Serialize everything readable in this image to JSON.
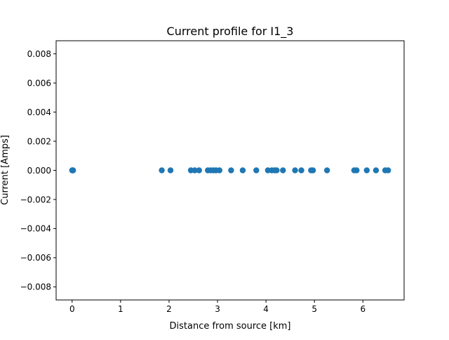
{
  "chart_data": {
    "type": "scatter",
    "title": "Current profile for  I1_3",
    "xlabel": "Distance from source [km]",
    "ylabel": "Current [Amps]",
    "xlim": [
      -0.33,
      6.85
    ],
    "ylim": [
      -0.0089,
      0.0089
    ],
    "xticks": [
      0,
      1,
      2,
      3,
      4,
      5,
      6
    ],
    "xtick_labels": [
      "0",
      "1",
      "2",
      "3",
      "4",
      "5",
      "6"
    ],
    "yticks": [
      0.008,
      0.006,
      0.004,
      0.002,
      0.0,
      -0.002,
      -0.004,
      -0.006,
      -0.008
    ],
    "ytick_labels": [
      "0.008",
      "0.006",
      "0.004",
      "0.002",
      "0.000",
      "−0.002",
      "−0.004",
      "−0.006",
      "−0.008"
    ],
    "grid": false,
    "marker_color": "#1f77b4",
    "series": [
      {
        "x": [
          0.0,
          0.01,
          0.02,
          1.85,
          2.03,
          2.45,
          2.53,
          2.62,
          2.8,
          2.86,
          2.92,
          2.97,
          3.04,
          3.28,
          3.52,
          3.8,
          4.04,
          4.12,
          4.18,
          4.22,
          4.35,
          4.6,
          4.73,
          4.93,
          4.97,
          5.26,
          5.82,
          5.87,
          6.08,
          6.27,
          6.46,
          6.52
        ],
        "y": [
          0,
          0,
          0,
          0,
          0,
          0,
          0,
          0,
          0,
          0,
          0,
          0,
          0,
          0,
          0,
          0,
          0,
          0,
          0,
          0,
          0,
          0,
          0,
          0,
          0,
          0,
          0,
          0,
          0,
          0,
          0,
          0
        ]
      }
    ]
  }
}
